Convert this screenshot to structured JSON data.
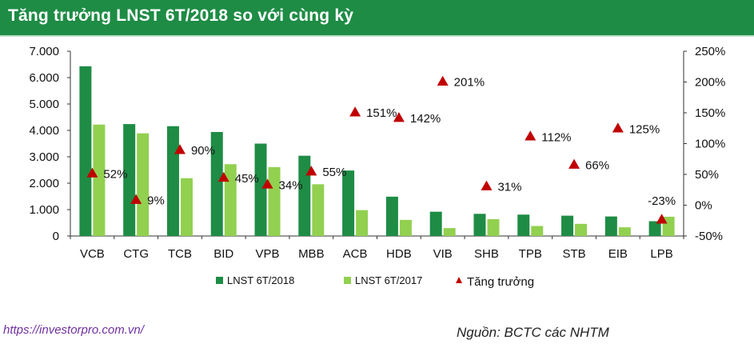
{
  "header": {
    "title": "Tăng trưởng LNST 6T/2018 so với cùng kỳ"
  },
  "footer": {
    "url": "https://investorpro.com.vn/",
    "source": "Nguồn: BCTC các NHTM"
  },
  "colors": {
    "header_bg": "#1e8c45",
    "series_2018": "#1e8c45",
    "series_2017": "#92d050",
    "growth_marker": "#c00000"
  },
  "chart_data": {
    "type": "bar",
    "categories": [
      "VCB",
      "CTG",
      "TCB",
      "BID",
      "VPB",
      "MBB",
      "ACB",
      "HDB",
      "VIB",
      "SHB",
      "TPB",
      "STB",
      "EIB",
      "LPB"
    ],
    "series": [
      {
        "name": "LNST 6T/2018",
        "values": [
          6430,
          4240,
          4160,
          3940,
          3500,
          3040,
          2480,
          1490,
          920,
          840,
          810,
          770,
          740,
          560
        ]
      },
      {
        "name": "LNST 6T/2017",
        "values": [
          4220,
          3890,
          2190,
          2720,
          2610,
          1960,
          980,
          610,
          300,
          640,
          380,
          460,
          330,
          730
        ]
      }
    ],
    "line_series": {
      "name": "Tăng trưởng",
      "axis": "right",
      "values": [
        52,
        9,
        90,
        45,
        34,
        55,
        151,
        142,
        201,
        31,
        112,
        66,
        125,
        -23
      ],
      "labels": [
        "52%",
        "9%",
        "90%",
        "45%",
        "34%",
        "55%",
        "151%",
        "142%",
        "201%",
        "31%",
        "112%",
        "66%",
        "125%",
        "-23%"
      ]
    },
    "y_left": {
      "ylim": [
        0,
        7000
      ],
      "ticks": [
        0,
        1000,
        2000,
        3000,
        4000,
        5000,
        6000,
        7000
      ],
      "tick_labels": [
        "0",
        "1.000",
        "2.000",
        "3.000",
        "4.000",
        "5.000",
        "6.000",
        "7.000"
      ]
    },
    "y_right": {
      "ylim": [
        -50,
        250
      ],
      "ticks": [
        -50,
        0,
        50,
        100,
        150,
        200,
        250
      ],
      "tick_labels": [
        "-50%",
        "0%",
        "50%",
        "100%",
        "150%",
        "200%",
        "250%"
      ]
    },
    "legend": {
      "placement": "bottom",
      "entries": [
        "LNST 6T/2018",
        "LNST 6T/2017",
        "Tăng trưởng"
      ]
    },
    "grid": false
  }
}
